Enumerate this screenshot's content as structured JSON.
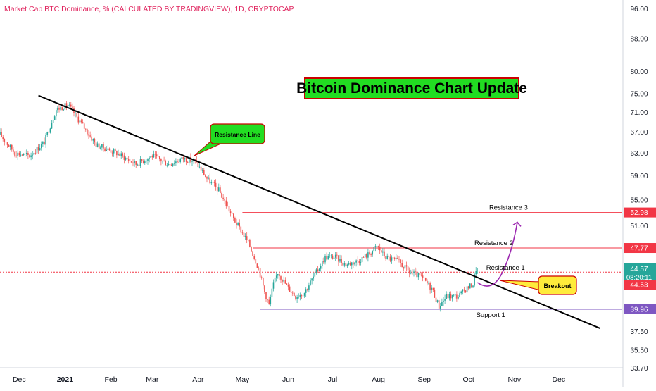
{
  "header": {
    "title": "Market Cap BTC Dominance, % (CALCULATED BY TRADINGVIEW), 1D, CRYPTOCAP"
  },
  "annotations": {
    "headline": "Bitcoin Dominance Chart Update",
    "resistance_line_label": "Resistance Line",
    "breakout_label": "Breakout",
    "resistance_3": "Resistance 3",
    "resistance_2": "Resistance 2",
    "resistance_1": "Resistance 1",
    "support_1": "Support 1"
  },
  "price_badges": {
    "r3": "52.98",
    "r2": "47.77",
    "current_price": "44.57",
    "countdown": "08:20:11",
    "r1": "44.53",
    "s1": "39.96"
  },
  "colors": {
    "up": "#26a69a",
    "down": "#ef5350",
    "header": "#e0245e",
    "resistance": "#f23645",
    "support": "#7e57c2",
    "trendline": "#000000",
    "projection": "#9c27b0",
    "current": "#26a69a",
    "countdown_bg": "#26a69a"
  },
  "chart_data": {
    "type": "candlestick",
    "y_scale": "log",
    "ylim": [
      33.7,
      96
    ],
    "y_ticks": [
      "96.00",
      "88.00",
      "80.00",
      "75.00",
      "71.00",
      "67.00",
      "63.00",
      "59.00",
      "55.00",
      "51.00",
      "37.50",
      "35.50",
      "33.70"
    ],
    "x_ticks": [
      "Dec",
      "2021",
      "Feb",
      "Mar",
      "Apr",
      "May",
      "Jun",
      "Jul",
      "Aug",
      "Sep",
      "Oct",
      "Nov",
      "Dec"
    ],
    "x_range": [
      "2020-11-18",
      "2021-12-31"
    ],
    "levels": [
      {
        "name": "Resistance 3",
        "value": 52.98
      },
      {
        "name": "Resistance 2",
        "value": 47.77
      },
      {
        "name": "Resistance 1",
        "value": 44.53
      },
      {
        "name": "Support 1",
        "value": 39.96
      }
    ],
    "trendline": {
      "start": [
        "2020-12-14",
        74.5
      ],
      "end": [
        "2021-12-29",
        37.8
      ]
    },
    "key_points": [
      {
        "date": "2020-11-18",
        "value": 66.5
      },
      {
        "date": "2020-11-28",
        "value": 63.0
      },
      {
        "date": "2020-12-08",
        "value": 62.5
      },
      {
        "date": "2020-12-18",
        "value": 65.0
      },
      {
        "date": "2020-12-26",
        "value": 71.5
      },
      {
        "date": "2021-01-03",
        "value": 72.5
      },
      {
        "date": "2021-01-10",
        "value": 69.5
      },
      {
        "date": "2021-01-22",
        "value": 64.5
      },
      {
        "date": "2021-02-05",
        "value": 63.0
      },
      {
        "date": "2021-02-18",
        "value": 61.0
      },
      {
        "date": "2021-03-01",
        "value": 62.5
      },
      {
        "date": "2021-03-12",
        "value": 61.0
      },
      {
        "date": "2021-03-22",
        "value": 62.0
      },
      {
        "date": "2021-03-30",
        "value": 61.5
      },
      {
        "date": "2021-04-07",
        "value": 58.5
      },
      {
        "date": "2021-04-15",
        "value": 56.5
      },
      {
        "date": "2021-04-25",
        "value": 52.0
      },
      {
        "date": "2021-05-05",
        "value": 48.5
      },
      {
        "date": "2021-05-12",
        "value": 45.0
      },
      {
        "date": "2021-05-16",
        "value": 42.0
      },
      {
        "date": "2021-05-19",
        "value": 40.5
      },
      {
        "date": "2021-05-22",
        "value": 43.0
      },
      {
        "date": "2021-05-25",
        "value": 44.5
      },
      {
        "date": "2021-06-01",
        "value": 42.5
      },
      {
        "date": "2021-06-06",
        "value": 41.5
      },
      {
        "date": "2021-06-12",
        "value": 42.0
      },
      {
        "date": "2021-06-20",
        "value": 44.5
      },
      {
        "date": "2021-06-26",
        "value": 46.5
      },
      {
        "date": "2021-07-03",
        "value": 46.5
      },
      {
        "date": "2021-07-10",
        "value": 45.5
      },
      {
        "date": "2021-07-18",
        "value": 46.0
      },
      {
        "date": "2021-07-26",
        "value": 47.0
      },
      {
        "date": "2021-07-31",
        "value": 48.0
      },
      {
        "date": "2021-08-06",
        "value": 46.5
      },
      {
        "date": "2021-08-14",
        "value": 46.0
      },
      {
        "date": "2021-08-22",
        "value": 44.5
      },
      {
        "date": "2021-08-29",
        "value": 44.0
      },
      {
        "date": "2021-09-06",
        "value": 42.5
      },
      {
        "date": "2021-09-11",
        "value": 40.3
      },
      {
        "date": "2021-09-16",
        "value": 41.5
      },
      {
        "date": "2021-09-24",
        "value": 41.5
      },
      {
        "date": "2021-09-30",
        "value": 42.5
      },
      {
        "date": "2021-10-04",
        "value": 43.0
      },
      {
        "date": "2021-10-06",
        "value": 45.0
      },
      {
        "date": "2021-10-07",
        "value": 44.57
      }
    ],
    "projection": [
      [
        "2021-10-07",
        43.2
      ],
      [
        "2021-10-17",
        43.5
      ],
      [
        "2021-11-03",
        51.5
      ]
    ]
  }
}
